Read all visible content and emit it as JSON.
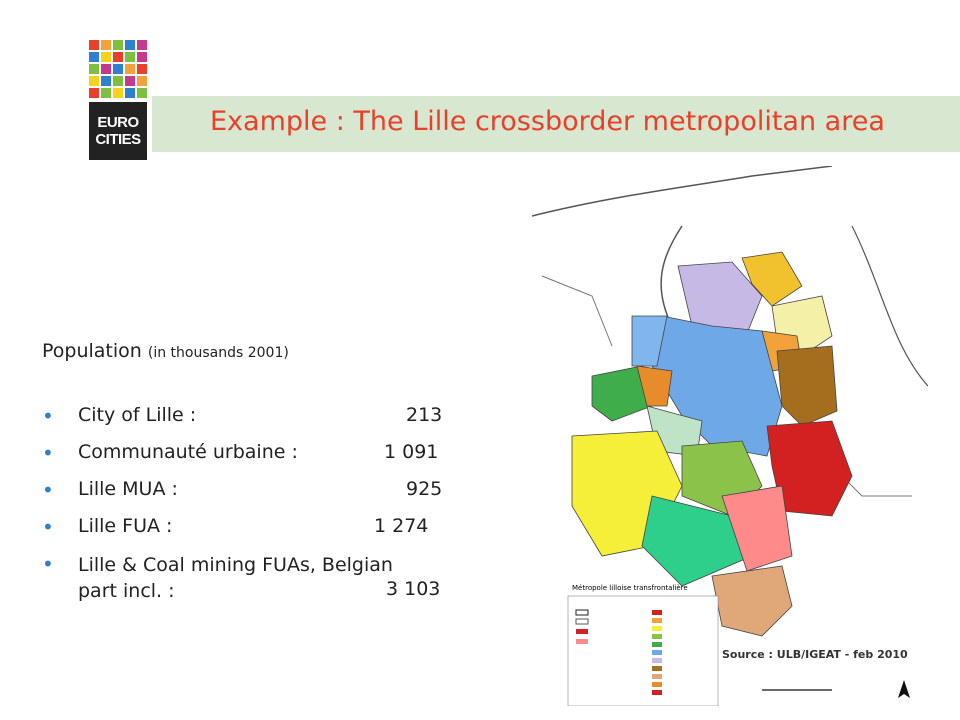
{
  "logo": {
    "line1": "EURO",
    "line2": "CITIES",
    "colors": [
      "#e8402a",
      "#f2a23a",
      "#7fbf3f",
      "#2e7fd0",
      "#c43a8c",
      "#2e7fd0",
      "#f6d21e",
      "#e8402a",
      "#7fbf3f",
      "#c43a8c",
      "#7fbf3f",
      "#c43a8c",
      "#2e7fd0",
      "#f2a23a",
      "#e8402a",
      "#f6d21e",
      "#2e7fd0",
      "#7fbf3f",
      "#c43a8c",
      "#f2a23a",
      "#e8402a",
      "#7fbf3f",
      "#f6d21e",
      "#2e7fd0",
      "#7fbf3f"
    ]
  },
  "slide": {
    "title": "Example : The Lille crossborder metropolitan area",
    "title_color": "#e8402a"
  },
  "population": {
    "heading": "Population",
    "heading_sub": "(in thousands 2001)",
    "items": [
      {
        "label": "City of Lille  :",
        "value": "213"
      },
      {
        "label": "Communauté urbaine :",
        "value": "1 091"
      },
      {
        "label": "Lille MUA :",
        "value": "925"
      },
      {
        "label": "Lille FUA :",
        "value": "1 274"
      },
      {
        "label_line1": "Lille & Coal mining FUAs, Belgian",
        "label_line2": "part incl. :",
        "value": "3 103"
      }
    ]
  },
  "map": {
    "legend_title": "Métropole lilloise transfrontalière",
    "source": "Source : ULB/IGEAT - feb 2010"
  }
}
